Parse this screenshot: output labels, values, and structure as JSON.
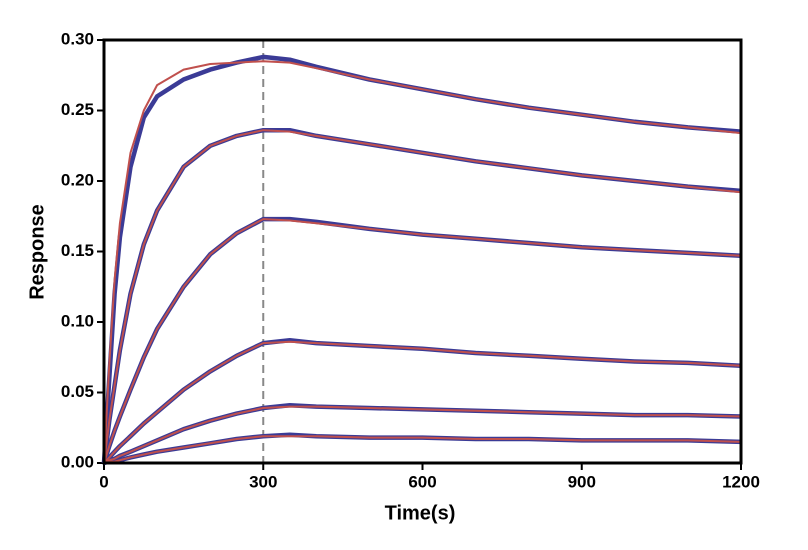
{
  "chart_data": {
    "type": "line",
    "xlabel": "Time(s)",
    "ylabel": "Response",
    "x": [
      0,
      10,
      20,
      30,
      50,
      75,
      100,
      150,
      200,
      250,
      300,
      350,
      400,
      500,
      600,
      700,
      800,
      900,
      1000,
      1100,
      1200
    ],
    "series": [
      {
        "color": "#3b3b96",
        "values": [
          0,
          0.06,
          0.12,
          0.16,
          0.21,
          0.245,
          0.26,
          0.272,
          0.279,
          0.284,
          0.288,
          0.286,
          0.281,
          0.272,
          0.265,
          0.258,
          0.252,
          0.247,
          0.242,
          0.238,
          0.235
        ]
      },
      {
        "color": "#3b3b96",
        "values": [
          0,
          0.03,
          0.055,
          0.08,
          0.12,
          0.155,
          0.179,
          0.21,
          0.225,
          0.232,
          0.236,
          0.236,
          0.232,
          0.226,
          0.22,
          0.214,
          0.209,
          0.204,
          0.2,
          0.196,
          0.193
        ]
      },
      {
        "color": "#3b3b96",
        "values": [
          0,
          0.012,
          0.023,
          0.033,
          0.052,
          0.075,
          0.095,
          0.125,
          0.148,
          0.163,
          0.173,
          0.173,
          0.171,
          0.166,
          0.162,
          0.159,
          0.156,
          0.153,
          0.151,
          0.149,
          0.147
        ]
      },
      {
        "color": "#3b3b96",
        "values": [
          0,
          0.004,
          0.008,
          0.012,
          0.019,
          0.028,
          0.036,
          0.052,
          0.065,
          0.076,
          0.085,
          0.087,
          0.085,
          0.083,
          0.081,
          0.078,
          0.076,
          0.074,
          0.072,
          0.071,
          0.069
        ]
      },
      {
        "color": "#3b3b96",
        "values": [
          0,
          0.002,
          0.003,
          0.005,
          0.008,
          0.012,
          0.016,
          0.024,
          0.03,
          0.035,
          0.039,
          0.041,
          0.04,
          0.039,
          0.038,
          0.037,
          0.036,
          0.035,
          0.034,
          0.034,
          0.033
        ]
      },
      {
        "color": "#3b3b96",
        "values": [
          0,
          0.001,
          0.001,
          0.002,
          0.004,
          0.006,
          0.008,
          0.011,
          0.014,
          0.017,
          0.019,
          0.02,
          0.019,
          0.018,
          0.018,
          0.017,
          0.017,
          0.016,
          0.016,
          0.016,
          0.015
        ]
      },
      {
        "color": "#c0504d",
        "values": [
          0,
          0.07,
          0.13,
          0.17,
          0.22,
          0.25,
          0.268,
          0.279,
          0.283,
          0.284,
          0.285,
          0.284,
          0.28,
          0.272,
          0.265,
          0.258,
          0.252,
          0.247,
          0.242,
          0.238,
          0.234
        ]
      },
      {
        "color": "#c0504d",
        "values": [
          0,
          0.03,
          0.055,
          0.08,
          0.12,
          0.155,
          0.179,
          0.21,
          0.225,
          0.232,
          0.236,
          0.235,
          0.232,
          0.226,
          0.22,
          0.214,
          0.209,
          0.204,
          0.2,
          0.196,
          0.192
        ]
      },
      {
        "color": "#c0504d",
        "values": [
          0,
          0.012,
          0.023,
          0.033,
          0.052,
          0.075,
          0.095,
          0.125,
          0.148,
          0.163,
          0.173,
          0.172,
          0.17,
          0.166,
          0.162,
          0.159,
          0.156,
          0.153,
          0.151,
          0.149,
          0.147
        ]
      },
      {
        "color": "#c0504d",
        "values": [
          0,
          0.004,
          0.008,
          0.012,
          0.019,
          0.028,
          0.036,
          0.052,
          0.065,
          0.076,
          0.085,
          0.086,
          0.085,
          0.083,
          0.081,
          0.078,
          0.076,
          0.074,
          0.072,
          0.071,
          0.069
        ]
      },
      {
        "color": "#c0504d",
        "values": [
          0,
          0.002,
          0.003,
          0.005,
          0.008,
          0.012,
          0.016,
          0.024,
          0.03,
          0.035,
          0.039,
          0.04,
          0.04,
          0.039,
          0.038,
          0.037,
          0.036,
          0.035,
          0.034,
          0.034,
          0.033
        ]
      },
      {
        "color": "#c0504d",
        "values": [
          0,
          0.001,
          0.001,
          0.002,
          0.004,
          0.006,
          0.008,
          0.011,
          0.014,
          0.017,
          0.019,
          0.019,
          0.019,
          0.018,
          0.018,
          0.017,
          0.017,
          0.016,
          0.016,
          0.016,
          0.015
        ]
      }
    ],
    "xlim": [
      0,
      1200
    ],
    "xticks": [
      0,
      300,
      600,
      900,
      1200
    ],
    "ylim": [
      0,
      0.3
    ],
    "yticks": [
      {
        "value": 0,
        "label": "0.00"
      },
      {
        "value": 0.05,
        "label": "0.05"
      },
      {
        "value": 0.1,
        "label": "0.10"
      },
      {
        "value": 0.15,
        "label": "0.15"
      },
      {
        "value": 0.2,
        "label": "0.20"
      },
      {
        "value": 0.25,
        "label": "0.25"
      },
      {
        "value": 0.3,
        "label": "0.30"
      }
    ],
    "vline": {
      "x": 300,
      "color": "#888888",
      "dashed": true
    }
  }
}
